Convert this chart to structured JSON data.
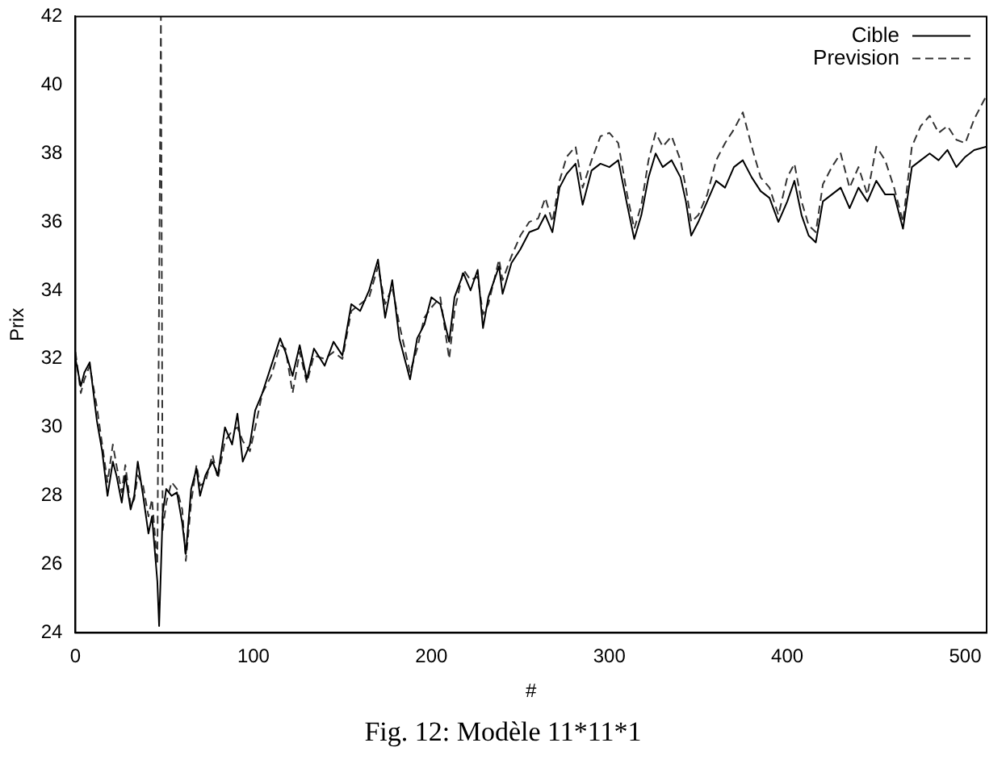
{
  "chart_data": {
    "type": "line",
    "xlabel": "#",
    "ylabel": "Prix",
    "annotations": [
      "Fig. 12: Modèle 11*11*1"
    ],
    "xlim": [
      0,
      512
    ],
    "xticks": [
      0,
      100,
      200,
      300,
      400,
      500
    ],
    "ylim": [
      24,
      42
    ],
    "yticks": [
      24,
      26,
      28,
      30,
      32,
      34,
      36,
      38,
      40,
      42
    ],
    "grid": false,
    "legend": "top right",
    "marker": "none",
    "series": [
      {
        "name": "Cible",
        "color": "#000000",
        "line_style": "solid",
        "x": [
          0,
          3,
          5,
          8,
          12,
          15,
          18,
          21,
          23,
          26,
          28,
          31,
          33,
          35,
          38,
          41,
          43,
          46,
          47,
          49,
          51,
          54,
          57,
          60,
          62,
          65,
          68,
          70,
          73,
          77,
          80,
          84,
          88,
          91,
          94,
          98,
          101,
          105,
          110,
          115,
          118,
          122,
          126,
          130,
          134,
          140,
          145,
          150,
          155,
          160,
          165,
          170,
          174,
          178,
          182,
          188,
          192,
          196,
          200,
          205,
          210,
          213,
          218,
          222,
          226,
          229,
          232,
          238,
          240,
          245,
          250,
          255,
          260,
          264,
          268,
          272,
          276,
          281,
          285,
          290,
          295,
          300,
          305,
          310,
          314,
          318,
          322,
          326,
          330,
          335,
          340,
          343,
          346,
          350,
          355,
          360,
          365,
          370,
          375,
          380,
          385,
          390,
          395,
          400,
          404,
          408,
          412,
          416,
          420,
          425,
          430,
          435,
          440,
          445,
          450,
          455,
          460,
          465,
          470,
          475,
          480,
          485,
          490,
          495,
          500,
          505,
          512
        ],
        "values": [
          32.0,
          31.2,
          31.6,
          31.9,
          30.2,
          29.3,
          28.0,
          29.0,
          28.6,
          27.8,
          28.6,
          27.6,
          28.0,
          29.0,
          28.0,
          26.9,
          27.4,
          25.5,
          24.2,
          27.5,
          28.2,
          28.0,
          28.1,
          27.2,
          26.3,
          28.2,
          28.8,
          28.0,
          28.6,
          29.0,
          28.6,
          30.0,
          29.5,
          30.4,
          29.0,
          29.5,
          30.5,
          31.0,
          31.8,
          32.6,
          32.2,
          31.5,
          32.4,
          31.4,
          32.3,
          31.8,
          32.5,
          32.1,
          33.6,
          33.4,
          34.0,
          34.9,
          33.2,
          34.3,
          32.6,
          31.4,
          32.6,
          33.0,
          33.8,
          33.6,
          32.5,
          33.8,
          34.5,
          34.0,
          34.6,
          32.9,
          33.8,
          34.7,
          33.9,
          34.8,
          35.2,
          35.7,
          35.8,
          36.2,
          35.7,
          37.0,
          37.4,
          37.7,
          36.5,
          37.5,
          37.7,
          37.6,
          37.8,
          36.5,
          35.5,
          36.2,
          37.3,
          38.0,
          37.6,
          37.8,
          37.3,
          36.6,
          35.6,
          36.0,
          36.6,
          37.2,
          37.0,
          37.6,
          37.8,
          37.3,
          36.9,
          36.7,
          36.0,
          36.6,
          37.2,
          36.2,
          35.6,
          35.4,
          36.6,
          36.8,
          37.0,
          36.4,
          37.0,
          36.6,
          37.2,
          36.8,
          36.8,
          35.8,
          37.6,
          37.8,
          38.0,
          37.8,
          38.1,
          37.6,
          37.9,
          38.1,
          38.2
        ]
      },
      {
        "name": "Prevision",
        "color": "#333333",
        "line_style": "dashed",
        "x": [
          0,
          3,
          5,
          8,
          12,
          15,
          18,
          21,
          23,
          26,
          28,
          31,
          33,
          35,
          38,
          41,
          43,
          46,
          48,
          49,
          51,
          54,
          57,
          60,
          62,
          65,
          68,
          70,
          73,
          77,
          80,
          84,
          88,
          91,
          94,
          98,
          101,
          105,
          110,
          115,
          118,
          122,
          126,
          130,
          134,
          140,
          145,
          150,
          155,
          160,
          165,
          170,
          174,
          178,
          182,
          188,
          192,
          196,
          200,
          205,
          210,
          213,
          218,
          222,
          226,
          229,
          232,
          238,
          240,
          245,
          250,
          255,
          260,
          264,
          268,
          272,
          276,
          281,
          285,
          290,
          295,
          300,
          305,
          310,
          314,
          318,
          322,
          326,
          330,
          335,
          340,
          343,
          346,
          350,
          355,
          360,
          365,
          370,
          375,
          380,
          385,
          390,
          395,
          400,
          404,
          408,
          412,
          416,
          420,
          425,
          430,
          435,
          440,
          445,
          450,
          455,
          460,
          465,
          470,
          475,
          480,
          485,
          490,
          495,
          500,
          505,
          512
        ],
        "values": [
          32.2,
          31.0,
          31.4,
          31.8,
          30.6,
          29.5,
          28.4,
          29.5,
          28.9,
          28.1,
          28.9,
          27.7,
          27.9,
          28.6,
          28.3,
          27.4,
          27.9,
          26.0,
          42.0,
          27.0,
          27.8,
          28.4,
          28.2,
          27.6,
          26.1,
          27.8,
          28.9,
          28.3,
          28.4,
          29.2,
          28.5,
          29.6,
          29.9,
          30.0,
          29.6,
          29.3,
          30.0,
          31.0,
          31.5,
          32.4,
          32.3,
          31.0,
          32.2,
          31.3,
          32.1,
          32.0,
          32.2,
          32.0,
          33.4,
          33.6,
          33.8,
          34.7,
          33.6,
          34.1,
          33.0,
          31.6,
          32.3,
          33.2,
          33.5,
          33.8,
          32.0,
          33.4,
          34.6,
          34.3,
          34.4,
          33.3,
          33.6,
          34.9,
          34.3,
          35.0,
          35.6,
          36.0,
          36.1,
          36.7,
          36.0,
          37.2,
          37.9,
          38.2,
          37.0,
          37.8,
          38.5,
          38.6,
          38.3,
          36.8,
          35.8,
          36.5,
          37.8,
          38.6,
          38.2,
          38.5,
          37.8,
          37.0,
          36.0,
          36.2,
          36.8,
          37.8,
          38.3,
          38.7,
          39.2,
          38.2,
          37.3,
          37.0,
          36.2,
          37.3,
          37.7,
          36.6,
          35.9,
          35.7,
          37.1,
          37.6,
          38.0,
          37.0,
          37.6,
          36.8,
          38.2,
          37.8,
          37.0,
          36.0,
          38.2,
          38.8,
          39.1,
          38.6,
          38.8,
          38.4,
          38.3,
          39.0,
          39.7
        ]
      }
    ]
  }
}
